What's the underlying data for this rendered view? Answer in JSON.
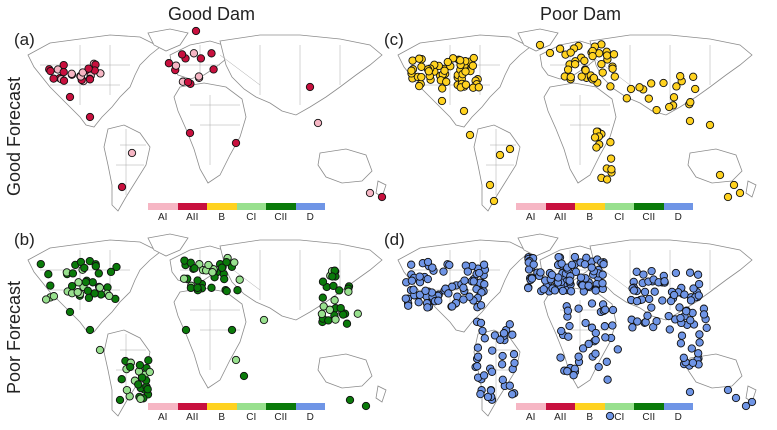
{
  "titles": {
    "col_left": "Good Dam",
    "col_right": "Poor Dam",
    "row_top": "Good Forecast",
    "row_bottom": "Poor Forecast"
  },
  "panels": [
    {
      "id": "a",
      "label": "(a)",
      "color": "#c8103e",
      "alt_color": "#f6b6c4"
    },
    {
      "id": "c",
      "label": "(c)",
      "color": "#ffd21f",
      "alt_color": "#ffd21f"
    },
    {
      "id": "b",
      "label": "(b)",
      "color": "#0a7a0a",
      "alt_color": "#98e08e"
    },
    {
      "id": "d",
      "label": "(d)",
      "color": "#6f95e6",
      "alt_color": "#6f95e6"
    }
  ],
  "legend": {
    "items": [
      {
        "label": "AI",
        "color": "#f6b6c4"
      },
      {
        "label": "AII",
        "color": "#c8103e"
      },
      {
        "label": "B",
        "color": "#ffd21f"
      },
      {
        "label": "CI",
        "color": "#98e08e"
      },
      {
        "label": "CII",
        "color": "#0a7a0a"
      },
      {
        "label": "D",
        "color": "#6f95e6"
      }
    ]
  }
}
